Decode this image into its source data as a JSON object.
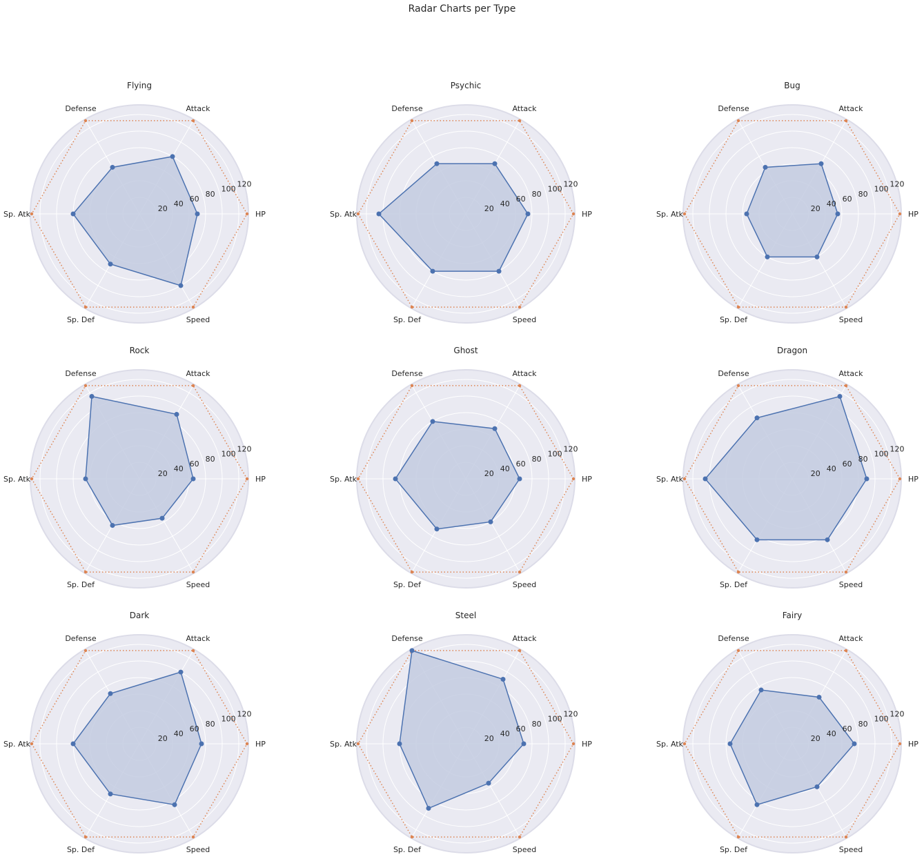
{
  "suptitle": "Radar Charts per Type",
  "chart_data": [
    {
      "type": "radar",
      "title": "Flying",
      "categories": [
        "HP",
        "Attack",
        "Defense",
        "Sp. Atk",
        "Sp. Def",
        "Speed"
      ],
      "values": [
        70,
        80,
        65,
        80,
        70,
        100
      ],
      "reference": 130,
      "rticks": [
        20,
        40,
        60,
        80,
        100,
        120
      ],
      "rlim": [
        0,
        130
      ]
    },
    {
      "type": "radar",
      "title": "Psychic",
      "categories": [
        "HP",
        "Attack",
        "Defense",
        "Sp. Atk",
        "Sp. Def",
        "Speed"
      ],
      "values": [
        75,
        70,
        70,
        105,
        80,
        80
      ],
      "reference": 130,
      "rticks": [
        20,
        40,
        60,
        80,
        100,
        120
      ],
      "rlim": [
        0,
        130
      ]
    },
    {
      "type": "radar",
      "title": "Bug",
      "categories": [
        "HP",
        "Attack",
        "Defense",
        "Sp. Atk",
        "Sp. Def",
        "Speed"
      ],
      "values": [
        55,
        70,
        65,
        55,
        60,
        60
      ],
      "reference": 130,
      "rticks": [
        20,
        40,
        60,
        80,
        100,
        120
      ],
      "rlim": [
        0,
        130
      ]
    },
    {
      "type": "radar",
      "title": "Rock",
      "categories": [
        "HP",
        "Attack",
        "Defense",
        "Sp. Atk",
        "Sp. Def",
        "Speed"
      ],
      "values": [
        65,
        90,
        115,
        65,
        65,
        55
      ],
      "reference": 130,
      "rticks": [
        20,
        40,
        60,
        80,
        100,
        120
      ],
      "rlim": [
        0,
        130
      ]
    },
    {
      "type": "radar",
      "title": "Ghost",
      "categories": [
        "HP",
        "Attack",
        "Defense",
        "Sp. Atk",
        "Sp. Def",
        "Speed"
      ],
      "values": [
        65,
        70,
        80,
        85,
        70,
        60
      ],
      "reference": 130,
      "rticks": [
        20,
        40,
        60,
        80,
        100,
        120
      ],
      "rlim": [
        0,
        130
      ]
    },
    {
      "type": "radar",
      "title": "Dragon",
      "categories": [
        "HP",
        "Attack",
        "Defense",
        "Sp. Atk",
        "Sp. Def",
        "Speed"
      ],
      "values": [
        90,
        115,
        85,
        105,
        85,
        85
      ],
      "reference": 130,
      "rticks": [
        20,
        40,
        60,
        80,
        100,
        120
      ],
      "rlim": [
        0,
        130
      ]
    },
    {
      "type": "radar",
      "title": "Dark",
      "categories": [
        "HP",
        "Attack",
        "Defense",
        "Sp. Atk",
        "Sp. Def",
        "Speed"
      ],
      "values": [
        75,
        100,
        70,
        80,
        70,
        85
      ],
      "reference": 130,
      "rticks": [
        20,
        40,
        60,
        80,
        100,
        120
      ],
      "rlim": [
        0,
        130
      ]
    },
    {
      "type": "radar",
      "title": "Steel",
      "categories": [
        "HP",
        "Attack",
        "Defense",
        "Sp. Atk",
        "Sp. Def",
        "Speed"
      ],
      "values": [
        70,
        90,
        130,
        80,
        90,
        55
      ],
      "reference": 130,
      "rticks": [
        20,
        40,
        60,
        80,
        100,
        120
      ],
      "rlim": [
        0,
        130
      ]
    },
    {
      "type": "radar",
      "title": "Fairy",
      "categories": [
        "HP",
        "Attack",
        "Defense",
        "Sp. Atk",
        "Sp. Def",
        "Speed"
      ],
      "values": [
        75,
        65,
        75,
        75,
        85,
        60
      ],
      "reference": 130,
      "rticks": [
        20,
        40,
        60,
        80,
        100,
        120
      ],
      "rlim": [
        0,
        130
      ]
    }
  ],
  "colors": {
    "panel_bg": "#eaeaf2",
    "grid": "#ffffff",
    "series": "#4c72b0",
    "series_fill": "#c3cbe1",
    "reference": "#dd8452",
    "text": "#262626"
  }
}
